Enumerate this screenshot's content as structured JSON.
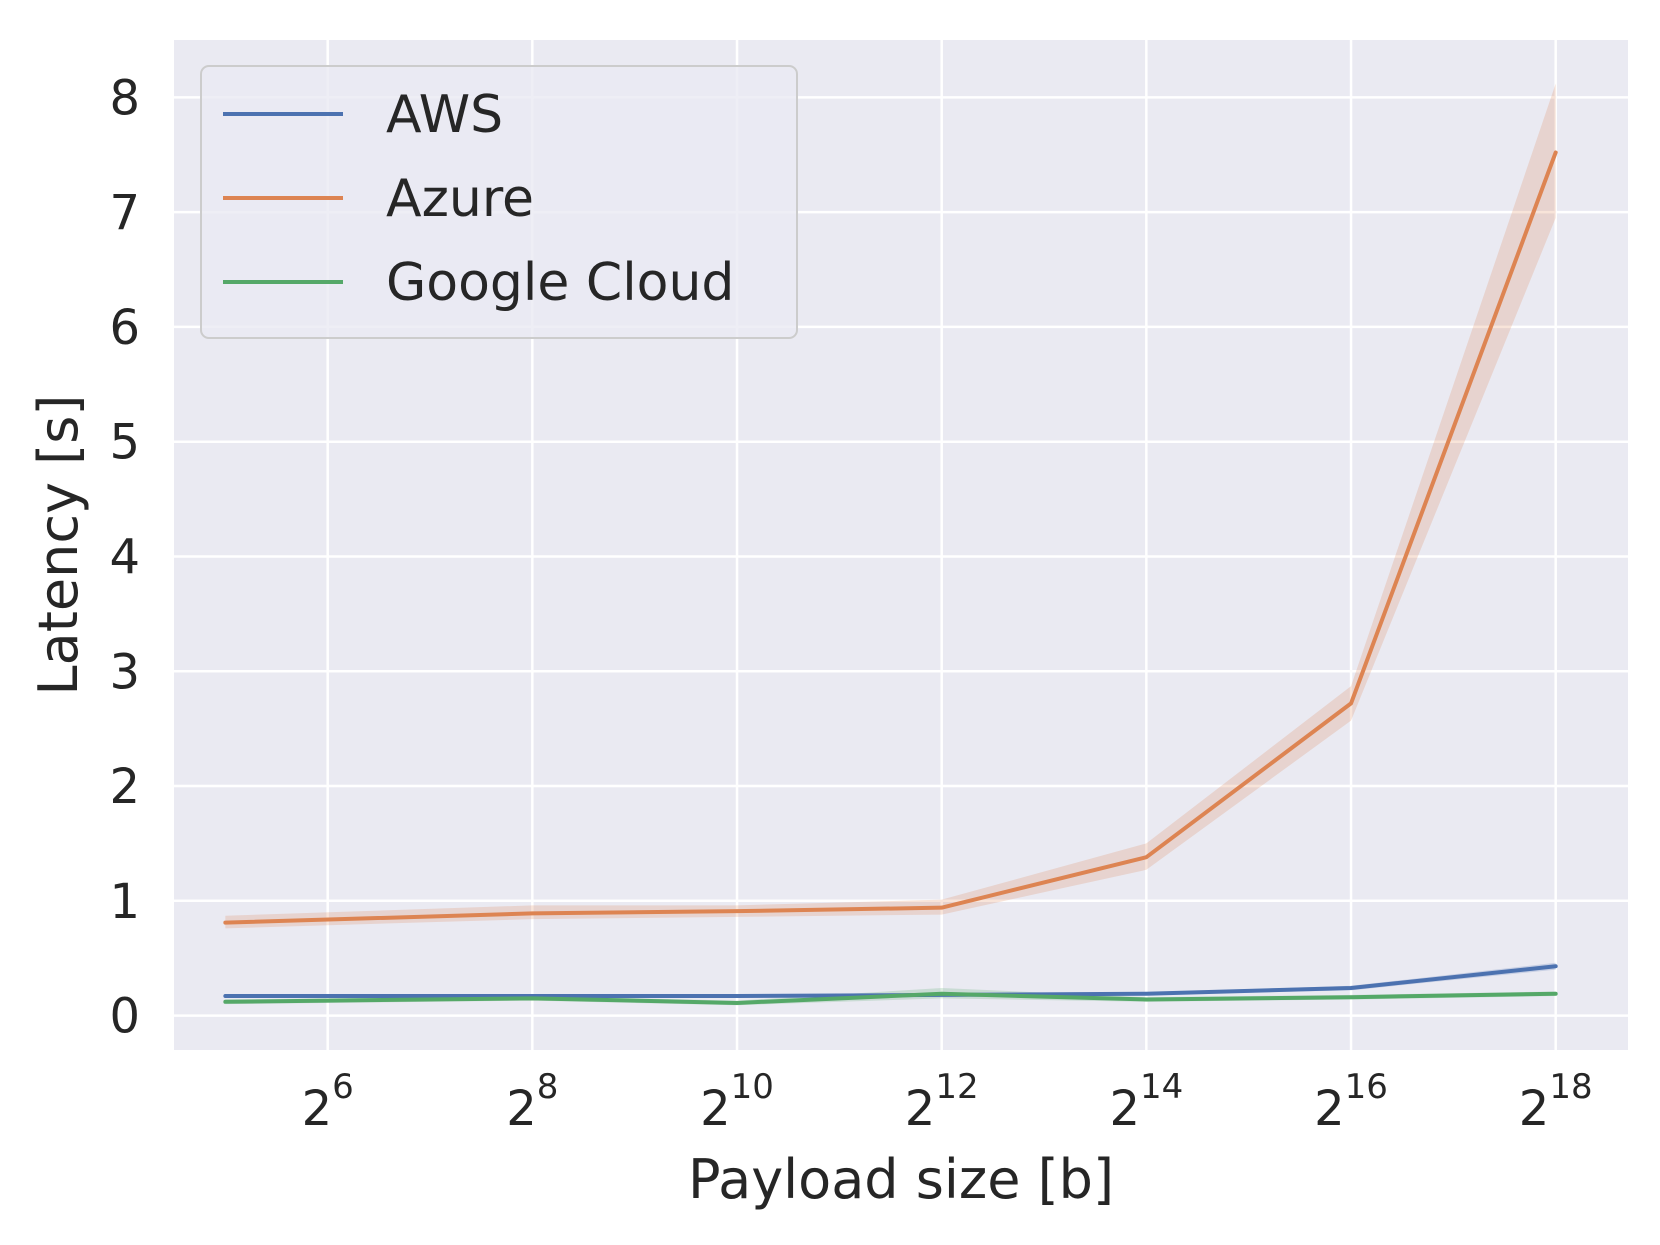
{
  "chart_data": {
    "type": "line",
    "xlabel": "Payload size [b]",
    "ylabel": "Latency [s]",
    "x_scale": "log2",
    "x_tick_base": "2",
    "x_ticks": [
      {
        "value": 64,
        "exponent": "6"
      },
      {
        "value": 256,
        "exponent": "8"
      },
      {
        "value": 1024,
        "exponent": "10"
      },
      {
        "value": 4096,
        "exponent": "12"
      },
      {
        "value": 16384,
        "exponent": "14"
      },
      {
        "value": 65536,
        "exponent": "16"
      },
      {
        "value": 262144,
        "exponent": "18"
      }
    ],
    "y_ticks": [
      "0",
      "1",
      "2",
      "3",
      "4",
      "5",
      "6",
      "7",
      "8"
    ],
    "xlim": [
      22.6,
      427800
    ],
    "ylim": [
      -0.3,
      8.5
    ],
    "grid": true,
    "legend_position": "top-left",
    "x": [
      32,
      256,
      1024,
      4096,
      16384,
      65536,
      262144
    ],
    "series": [
      {
        "name": "AWS",
        "color": "#4c72b0",
        "values": [
          0.17,
          0.17,
          0.17,
          0.18,
          0.19,
          0.24,
          0.43
        ],
        "lower": [
          0.16,
          0.16,
          0.16,
          0.17,
          0.18,
          0.22,
          0.4
        ],
        "upper": [
          0.18,
          0.18,
          0.18,
          0.19,
          0.2,
          0.26,
          0.46
        ]
      },
      {
        "name": "Azure",
        "color": "#dd8452",
        "values": [
          0.81,
          0.89,
          0.91,
          0.94,
          1.38,
          2.72,
          7.52
        ],
        "lower": [
          0.76,
          0.84,
          0.86,
          0.88,
          1.27,
          2.57,
          6.95
        ],
        "upper": [
          0.87,
          0.96,
          0.96,
          1.01,
          1.5,
          2.87,
          8.12
        ]
      },
      {
        "name": "Google Cloud",
        "color": "#55a868",
        "values": [
          0.12,
          0.15,
          0.11,
          0.19,
          0.14,
          0.16,
          0.19
        ],
        "lower": [
          0.1,
          0.13,
          0.09,
          0.15,
          0.12,
          0.14,
          0.17
        ],
        "upper": [
          0.14,
          0.17,
          0.13,
          0.24,
          0.16,
          0.18,
          0.21
        ]
      }
    ]
  }
}
